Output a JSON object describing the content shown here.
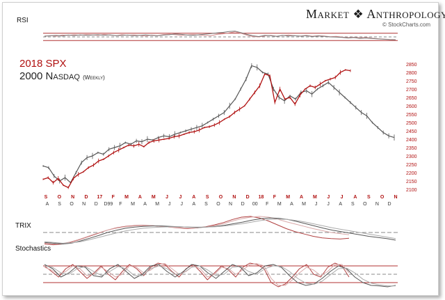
{
  "brand": {
    "name_left": "Market",
    "name_right": "Anthropology",
    "logo_icon": "dna-helix-icon",
    "credit": "© StockCharts.com"
  },
  "panels": {
    "rsi": "RSI",
    "trix": "TRIX",
    "stochastics": "Stochastics"
  },
  "title": {
    "line1": "2018 SPX",
    "line2": "2000 Nasdaq",
    "line2_note": "(Weekly)"
  },
  "colors": {
    "spx": "#b01010",
    "nasdaq": "#555555",
    "rule_red": "#b03030"
  },
  "chart_data": [
    {
      "type": "line",
      "title": "RSI",
      "ylim": [
        0,
        100
      ],
      "reference_lines": [
        70,
        50,
        30
      ],
      "series": [
        {
          "values": [
            55,
            57,
            54,
            60,
            58,
            62,
            59,
            63,
            61,
            58,
            64,
            60,
            57,
            62,
            59,
            61,
            58,
            55,
            60,
            57,
            63,
            65,
            62,
            59,
            61,
            63,
            60,
            58,
            57,
            64,
            67,
            72,
            78,
            70,
            60,
            52,
            50,
            55,
            58,
            54,
            57,
            60,
            56,
            55,
            58,
            54,
            57,
            55,
            51,
            53,
            49,
            46,
            48,
            45,
            47,
            43,
            40,
            38,
            36,
            35
          ]
        },
        {
          "values": [
            54,
            56,
            58,
            55,
            60,
            57,
            61,
            58,
            60,
            62,
            59,
            61,
            57,
            58,
            60,
            56,
            59,
            61,
            58,
            56,
            60,
            62,
            66,
            64,
            60,
            58,
            62,
            65,
            68,
            72,
            75,
            80,
            82,
            74,
            64,
            56,
            52,
            58,
            56,
            53,
            58,
            55,
            57,
            54,
            56,
            52,
            55,
            53,
            50,
            49,
            47,
            44,
            46,
            42,
            44,
            41,
            39,
            37,
            35,
            34
          ]
        }
      ]
    },
    {
      "type": "line",
      "title": "2018 SPX / 2000 Nasdaq (Weekly)",
      "ylim": [
        2100,
        2850
      ],
      "y_ticks": [
        2100,
        2150,
        2200,
        2250,
        2300,
        2350,
        2400,
        2450,
        2500,
        2550,
        2600,
        2650,
        2700,
        2750,
        2800,
        2850
      ],
      "x_labels_top": [
        "S",
        "O",
        "N",
        "D",
        "17",
        "F",
        "M",
        "A",
        "M",
        "J",
        "J",
        "A",
        "S",
        "O",
        "N",
        "D",
        "18",
        "F",
        "M",
        "A",
        "M",
        "J",
        "J",
        "A",
        "S",
        "O",
        "N"
      ],
      "x_labels_bottom": [
        "A",
        "S",
        "O",
        "N",
        "D",
        "D99",
        "F",
        "M",
        "A",
        "M",
        "J",
        "J",
        "A",
        "S",
        "O",
        "N",
        "D",
        "00",
        "F",
        "M",
        "A",
        "M",
        "J",
        "J",
        "A",
        "S",
        "O",
        "N",
        "D"
      ],
      "series": [
        {
          "name": "2018 SPX",
          "values": [
            2160,
            2170,
            2140,
            2165,
            2125,
            2110,
            2165,
            2190,
            2205,
            2230,
            2245,
            2270,
            2280,
            2300,
            2320,
            2335,
            2350,
            2365,
            2360,
            2370,
            2355,
            2380,
            2390,
            2395,
            2400,
            2405,
            2415,
            2420,
            2430,
            2440,
            2445,
            2455,
            2470,
            2475,
            2485,
            2500,
            2520,
            2535,
            2560,
            2580,
            2600,
            2640,
            2680,
            2720,
            2790,
            2780,
            2620,
            2700,
            2640,
            2650,
            2610,
            2665,
            2700,
            2720,
            2710,
            2730,
            2750,
            2760,
            2770,
            2800,
            2815,
            2810
          ]
        },
        {
          "name": "2000 Nasdaq",
          "values": [
            2240,
            2230,
            2180,
            2150,
            2170,
            2140,
            2200,
            2260,
            2290,
            2300,
            2320,
            2310,
            2340,
            2350,
            2360,
            2380,
            2370,
            2390,
            2385,
            2400,
            2395,
            2410,
            2420,
            2415,
            2430,
            2440,
            2450,
            2460,
            2470,
            2480,
            2500,
            2520,
            2540,
            2560,
            2600,
            2640,
            2700,
            2760,
            2840,
            2830,
            2800,
            2790,
            2700,
            2650,
            2630,
            2660,
            2640,
            2680,
            2690,
            2670,
            2700,
            2720,
            2740,
            2710,
            2680,
            2650,
            2620,
            2590,
            2560,
            2540,
            2500,
            2470,
            2440,
            2420,
            2410
          ]
        }
      ]
    },
    {
      "type": "line",
      "title": "TRIX",
      "series": [
        {
          "values": [
            -30,
            -32,
            -30,
            -25,
            -18,
            -10,
            -2,
            6,
            12,
            16,
            18,
            19,
            18,
            16,
            14,
            12,
            10,
            12,
            15,
            20,
            26,
            34,
            40,
            42,
            38,
            30,
            20,
            10,
            2,
            -4,
            -10,
            -14,
            -16,
            -17,
            -15
          ]
        },
        {
          "values": [
            -28,
            -30,
            -29,
            -24,
            -17,
            -9,
            -1,
            6,
            11,
            15,
            17,
            18,
            18,
            16,
            14,
            13,
            11,
            12,
            14,
            18,
            23,
            30,
            36,
            40,
            42,
            40,
            35,
            28,
            22,
            16,
            10,
            5,
            0,
            -3,
            -6
          ]
        },
        {
          "values": [
            -26,
            -28,
            -30,
            -28,
            -22,
            -15,
            -8,
            0,
            6,
            11,
            14,
            16,
            17,
            17,
            16,
            15,
            14,
            13,
            14,
            16,
            19,
            23,
            27,
            32,
            36,
            38,
            37,
            34,
            29,
            23,
            17,
            11,
            6,
            2,
            -2,
            -6,
            -10,
            -13,
            -16,
            -20
          ]
        },
        {
          "values": [
            -24,
            -26,
            -28,
            -27,
            -24,
            -19,
            -13,
            -7,
            -1,
            4,
            8,
            11,
            13,
            14,
            15,
            15,
            14,
            14,
            14,
            15,
            17,
            20,
            23,
            27,
            31,
            34,
            35,
            34,
            31,
            27,
            22,
            17,
            12,
            8,
            4,
            0,
            -4,
            -8,
            -12,
            -16
          ]
        }
      ]
    },
    {
      "type": "line",
      "title": "Stochastics",
      "ylim": [
        0,
        100
      ],
      "reference_lines": [
        80,
        50,
        20
      ],
      "series": [
        {
          "values": [
            80,
            60,
            40,
            70,
            85,
            60,
            35,
            55,
            80,
            50,
            30,
            60,
            85,
            70,
            45,
            75,
            90,
            85,
            60,
            40,
            70,
            85,
            60,
            30,
            55,
            80,
            65,
            40,
            75,
            90,
            85,
            70,
            20,
            5,
            15,
            40,
            70,
            85,
            50,
            40,
            75,
            90,
            80,
            40
          ]
        },
        {
          "values": [
            75,
            65,
            50,
            60,
            80,
            70,
            45,
            50,
            75,
            60,
            40,
            50,
            80,
            75,
            55,
            65,
            85,
            88,
            70,
            50,
            60,
            80,
            70,
            40,
            50,
            75,
            70,
            50,
            65,
            85,
            88,
            80,
            35,
            10,
            10,
            30,
            55,
            75,
            65,
            45,
            60,
            85,
            85,
            55
          ]
        },
        {
          "values": [
            85,
            70,
            40,
            55,
            80,
            75,
            45,
            40,
            70,
            85,
            60,
            35,
            50,
            80,
            85,
            60,
            40,
            60,
            85,
            80,
            55,
            35,
            60,
            85,
            75,
            45,
            55,
            80,
            85,
            75,
            45,
            20,
            10,
            15,
            35,
            60,
            80,
            70,
            40,
            20,
            10,
            8,
            5,
            10
          ]
        },
        {
          "values": [
            80,
            75,
            55,
            50,
            70,
            78,
            60,
            45,
            60,
            78,
            70,
            45,
            45,
            70,
            80,
            70,
            50,
            55,
            75,
            80,
            65,
            45,
            50,
            75,
            78,
            60,
            50,
            70,
            80,
            78,
            60,
            35,
            18,
            14,
            25,
            48,
            70,
            72,
            55,
            32,
            18,
            12,
            8,
            8
          ]
        }
      ]
    }
  ]
}
